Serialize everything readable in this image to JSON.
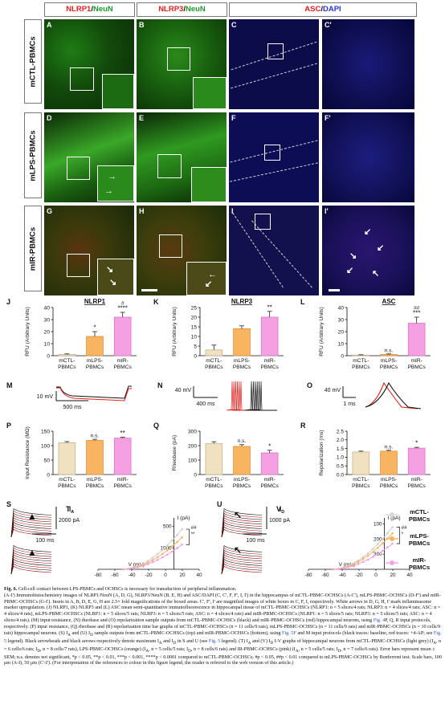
{
  "headers": {
    "col1": {
      "a": "NLRP1",
      "sep": "/",
      "b": "NeuN"
    },
    "col2": {
      "a": "NLRP3",
      "sep": "/",
      "b": "NeuN"
    },
    "col3": {
      "a": "ASC",
      "sep": "/",
      "b": "DAPI"
    }
  },
  "row_labels": [
    "mCTL-PBMCs",
    "mLPS-PBMCs",
    "mIR-PBMCs"
  ],
  "panel_letters": [
    "A",
    "B",
    "C",
    "C'",
    "D",
    "E",
    "F",
    "F'",
    "G",
    "H",
    "I",
    "I'"
  ],
  "colors": {
    "red": "#e0201c",
    "green": "#1c9a2a",
    "blue": "#2a36c8",
    "ctl": "#f0e2c0",
    "lps": "#f8b460",
    "ir": "#f6a0e4"
  },
  "bar_charts": [
    {
      "letter": "J",
      "title": "NLRP1",
      "ylabel": "RFU (Arbitrary Units)",
      "ylim": [
        0,
        40
      ],
      "ticks": [
        "0",
        "10",
        "20",
        "30",
        "40"
      ],
      "categories": [
        [
          "mCTL-",
          "PBMCs"
        ],
        [
          "mLPS-",
          "PBMCs"
        ],
        [
          "mIR-",
          "PBMCs"
        ]
      ],
      "values": [
        1,
        16,
        32
      ],
      "errors": [
        0.5,
        4,
        4
      ],
      "sig": [
        [
          "",
          ""
        ],
        [
          "",
          "*"
        ],
        [
          "#",
          "****"
        ]
      ]
    },
    {
      "letter": "K",
      "title": "NLRP3",
      "ylabel": "RFU (Arbitrary Units)",
      "ylim": [
        0,
        25
      ],
      "ticks": [
        "0",
        "5",
        "10",
        "15",
        "20",
        "25"
      ],
      "categories": [
        [
          "mCTL-",
          "PBMCs"
        ],
        [
          "mLPS-",
          "PBMCs"
        ],
        [
          "mIR-",
          "PBMCs"
        ]
      ],
      "values": [
        3,
        14,
        20
      ],
      "errors": [
        2.5,
        1.5,
        3
      ],
      "sig": [
        [
          "",
          ""
        ],
        [
          "",
          ""
        ],
        [
          "",
          "**"
        ]
      ]
    },
    {
      "letter": "L",
      "title": "ASC",
      "ylabel": "RFU (Arbitrary Units)",
      "ylim": [
        0,
        40
      ],
      "ticks": [
        "0",
        "10",
        "20",
        "30",
        "40"
      ],
      "categories": [
        [
          "mCTL-",
          "PBMCs"
        ],
        [
          "mLPS-",
          "PBMCs"
        ],
        [
          "mIR-",
          "PBMCs"
        ]
      ],
      "values": [
        0.5,
        1,
        27
      ],
      "errors": [
        0.3,
        0.5,
        5
      ],
      "sig": [
        [
          "",
          ""
        ],
        [
          "",
          "n.s."
        ],
        [
          "##",
          "***"
        ]
      ]
    },
    {
      "letter": "P",
      "title": "",
      "ylabel": "Input Resistance (MΩ)",
      "ylim": [
        0,
        150
      ],
      "ticks": [
        "0",
        "50",
        "100",
        "150"
      ],
      "categories": [
        [
          "mCTL-",
          "PBMCs"
        ],
        [
          "mLPS-",
          "PBMCs"
        ],
        [
          "mIR-",
          "PBMCs"
        ]
      ],
      "values": [
        110,
        118,
        126
      ],
      "errors": [
        4,
        4,
        3
      ],
      "sig": [
        [
          "",
          ""
        ],
        [
          "",
          "n.s."
        ],
        [
          "",
          "**"
        ]
      ]
    },
    {
      "letter": "Q",
      "title": "",
      "ylabel": "Rheobase (pA)",
      "ylim": [
        0,
        300
      ],
      "ticks": [
        "0",
        "100",
        "200",
        "300"
      ],
      "categories": [
        [
          "mCTL-",
          "PBMCs"
        ],
        [
          "mLPS-",
          "PBMCs"
        ],
        [
          "mIR-",
          "PBMCs"
        ]
      ],
      "values": [
        215,
        195,
        150
      ],
      "errors": [
        12,
        12,
        18
      ],
      "sig": [
        [
          "",
          ""
        ],
        [
          "",
          "n.s."
        ],
        [
          "",
          "*"
        ]
      ]
    },
    {
      "letter": "R",
      "title": "",
      "ylabel": "Repolarization (ms)",
      "ylim": [
        0,
        2.5
      ],
      "ticks": [
        "0.0",
        "0.5",
        "1.0",
        "1.5",
        "2.0",
        "2.5"
      ],
      "categories": [
        [
          "mCTL-",
          "PBMCs"
        ],
        [
          "mLPS-",
          "PBMCs"
        ],
        [
          "mIR-",
          "PBMCs"
        ]
      ],
      "values": [
        1.3,
        1.35,
        1.52
      ],
      "errors": [
        0.05,
        0.05,
        0.05
      ],
      "sig": [
        [
          "",
          ""
        ],
        [
          "",
          "n.s."
        ],
        [
          "",
          "*"
        ]
      ]
    }
  ],
  "traces": {
    "M": {
      "letter": "M",
      "scale_v": "10 mV",
      "scale_t": "500 ms"
    },
    "N": {
      "letter": "N",
      "scale_v": "40 mV",
      "scale_t": "400 ms"
    },
    "O": {
      "letter": "O",
      "scale_v": "40 mV",
      "scale_t": "1 ms"
    },
    "S": {
      "letter": "S",
      "scale_i": "2000 pA",
      "scale_t": "100 ms"
    },
    "U": {
      "letter": "U",
      "scale_i": "1000 pA",
      "scale_t": "100 ms"
    }
  },
  "iv": [
    {
      "letter": "T",
      "sub": "I",
      "subsub": "A",
      "ylabel": "I (pA)",
      "xlabel": "V (mV)",
      "xticks": [
        "-80",
        "-60",
        "-40",
        "-20",
        "0",
        "20",
        "40"
      ],
      "yticks": [
        "1000",
        "500"
      ],
      "sig": [
        "##",
        "**"
      ]
    },
    {
      "letter": "V",
      "sub": "I",
      "subsub": "D",
      "ylabel": "I (pA)",
      "xlabel": "V (mV)",
      "xticks": [
        "-80",
        "-60",
        "-40",
        "-20",
        "0",
        "20",
        "40"
      ],
      "yticks": [
        "300",
        "200",
        "100"
      ],
      "sig": [
        "##",
        "*"
      ]
    }
  ],
  "legend": [
    [
      "mCTL-",
      "PBMCs"
    ],
    [
      "mLPS-",
      "PBMCs"
    ],
    [
      "mIR-",
      "PBMCs"
    ]
  ],
  "caption": {
    "title": "Fig. 6.",
    "title_text": "Cell-cell contact between LPS-PBMCs and OCHSCs is necessary for transduction of peripheral inflammation.",
    "body1": "(A-I') Immunohistochemistry images of NLRP1/NeuN (A, D, G), NLRP3/NeuN (B, E, H) and ASC/DAPI (C, C', F, F', I, I') in the hippocampus of mCTL-PBMC-OCHSCs (A-C'), mLPS-PBMC-OCHSCs (D-F') and mIR-PBMC-OCHSCs (G-I'). Insets in A, B, D, E, G, H are 2.5× fold magnifications of the boxed areas. C', F', I' are magnified images of white boxes in C, F, I, respectively. White arrows in D, G, H, I' mark inflammasome marker upregulation. (J) NLRP1, (K) NLRP3 and (L) ASC mean semi-quantitative immunofluorescence in hippocampal tissue of mCTL-PBMC-OCHSCs (NLRP1: n = 5 slices/4 rats; NLRP3: n = 4 slices/4 rats; ASC: n = 4 slices/4 rats), mLPS-PBMC-OCHSCs (NLRP1: n = 5 slices/5 rats; NLRP3: n = 5 slices/5 rats; ASC: n = 4 slices/4 rats) and mIR-PBMC-OCHSCs (NLRP1: n = 5 slices/5 rats; NLRP3: n = 5 slices/5 rats; ASC: n = 4 slices/4 rats). (M) input resistance, (N) rheobase and (O) repolarization sample outputs from mCTL-PBMC-OCHSCs (black) and mIR-PBMC-OCHSCs (red) hippocampal neurons, using",
    "link1": "Fig. 4",
    "body2": "P, Q, R input protocols, respectively. (P) input resistance, (Q) rheobase and (R) repolarization time bar graphs of mCTL-PBMC-OCHSCs (n = 11 cells/9 rats), mLPS-PBMC-OCHSCs (n = 11 cells/9 rats) and mIR-PBMC-OCHSCs (n = 10 cells/9 rats) hippocampal neurons. (S) I",
    "body3": "and (U) I",
    "body4": "sample outputs from mCTL-PBMC-OCHSCs (top) and mIR-PBMC-OCHSCs (bottom), using",
    "link2": "Fig. 5F",
    "body5": "and M input protocols (black traces: baseline, red traces: +4-AP; see",
    "link3": "Fig. 5",
    "body6": "legend). Black arrowheads and black arrows respectively denote maximum I",
    "body7": "and I",
    "body8": "in S and U (see",
    "link4": "Fig. 5",
    "body9": "legend). (T) I",
    "body10": "and (V) I",
    "body11": "I-V graphs of hippocampal neurons from mCTL-PBMC-OCHSCs (light grey) (I",
    "body12": ", n = 6 cells/6 rats; I",
    "body13": ", n = 8 cells/7 rats), LPS-PBMC-OCHSCs (orange) (I",
    "body14": ", n = 5 cells/5 rats; I",
    "body15": ", n = 8 cells/6 rats) and IR-PBMC-OCHSCs (pink) (I",
    "body16": ", n = 5 cells/5 rats; I",
    "body17": ", n = 7 cells/6 rats). Error bars represent mean ± SEM; n.s. denotes not significant, *p < 0.05, **p < 0.01, ***p < 0.001, ****p < 0.0001 compared to mCTL-PBMC-OCHSCs; #p < 0.05, ##p < 0.01 compared to mLPS-PBMC-OCHSCs by Bonferroni test. Scale bars, 100 μm (A-I), 50 μm (C'-I'). (For interpretation of the references to colour in this figure legend, the reader is referred to the web version of this article.)",
    "subA": "A",
    "subD": "D"
  }
}
